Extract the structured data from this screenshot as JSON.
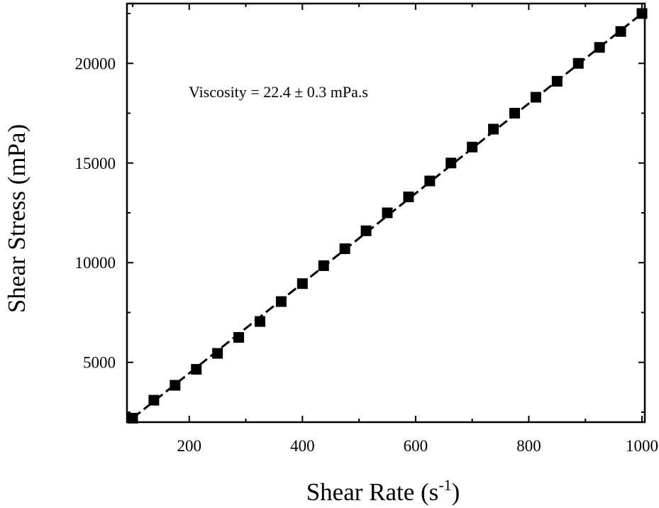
{
  "chart_data": {
    "type": "scatter",
    "title": "",
    "xlabel": "Shear Rate",
    "xlabel_unit_prefix": "(s",
    "xlabel_unit_exponent": "-1",
    "xlabel_unit_suffix": ")",
    "ylabel": "Shear Stress (mPa)",
    "xlim": [
      90,
      1005
    ],
    "ylim": [
      2000,
      23000
    ],
    "x_ticks": [
      200,
      400,
      600,
      800,
      1000
    ],
    "y_ticks": [
      5000,
      10000,
      15000,
      20000
    ],
    "grid": false,
    "annotation": "Viscosity = 22.4 ± 0.3 mPa.s",
    "series": [
      {
        "marker": "square",
        "color": "#000000",
        "x": [
          100,
          137.5,
          175,
          212.5,
          250,
          287.5,
          325,
          362.5,
          400,
          437.5,
          475,
          512.5,
          550,
          587.5,
          625,
          662.5,
          700,
          737.5,
          775,
          812.5,
          850,
          887.5,
          925,
          962.5,
          1000
        ],
        "y": [
          2200,
          3100,
          3850,
          4650,
          5450,
          6250,
          7050,
          8050,
          8950,
          9850,
          10700,
          11600,
          12500,
          13300,
          14100,
          15000,
          15800,
          16700,
          17500,
          18300,
          19100,
          20000,
          20800,
          21600,
          22500
        ]
      }
    ],
    "fit_line": {
      "style": "dashed",
      "color": "#000000",
      "x": [
        100,
        1000
      ],
      "y": [
        2200,
        22500
      ]
    }
  }
}
